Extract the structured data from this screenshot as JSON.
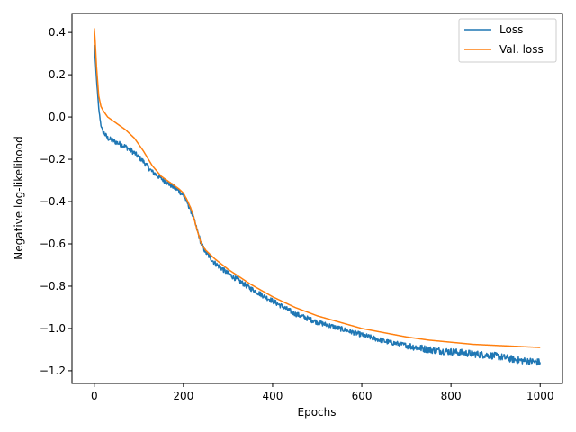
{
  "chart_data": {
    "type": "line",
    "title": "",
    "xlabel": "Epochs",
    "ylabel": "Negative log-likelihood",
    "xlim": [
      -50,
      1050
    ],
    "ylim": [
      -1.26,
      0.49
    ],
    "xticks": [
      0,
      200,
      400,
      600,
      800,
      1000
    ],
    "yticks": [
      -1.2,
      -1.0,
      -0.8,
      -0.6,
      -0.4,
      -0.2,
      0.0,
      0.2,
      0.4
    ],
    "xtick_labels": [
      "0",
      "200",
      "400",
      "600",
      "800",
      "1000"
    ],
    "ytick_labels": [
      "−1.2",
      "−1.0",
      "−0.8",
      "−0.6",
      "−0.4",
      "−0.2",
      "0.0",
      "0.2",
      "0.4"
    ],
    "grid": false,
    "legend_position": "top-right",
    "series": [
      {
        "name": "Loss",
        "color": "#1f77b4",
        "noise": 0.012,
        "x": [
          0,
          2,
          5,
          10,
          15,
          20,
          30,
          50,
          70,
          90,
          110,
          130,
          150,
          170,
          190,
          200,
          210,
          220,
          230,
          240,
          250,
          270,
          300,
          350,
          400,
          450,
          500,
          550,
          600,
          650,
          700,
          750,
          800,
          850,
          900,
          950,
          1000
        ],
        "y": [
          0.34,
          0.28,
          0.18,
          0.04,
          -0.04,
          -0.07,
          -0.1,
          -0.12,
          -0.14,
          -0.17,
          -0.21,
          -0.26,
          -0.29,
          -0.32,
          -0.35,
          -0.37,
          -0.41,
          -0.46,
          -0.53,
          -0.6,
          -0.64,
          -0.69,
          -0.74,
          -0.81,
          -0.87,
          -0.93,
          -0.97,
          -1.0,
          -1.03,
          -1.06,
          -1.08,
          -1.1,
          -1.11,
          -1.12,
          -1.13,
          -1.15,
          -1.16
        ]
      },
      {
        "name": "Val. loss",
        "color": "#ff7f0e",
        "noise": 0,
        "x": [
          0,
          2,
          5,
          10,
          15,
          20,
          30,
          50,
          70,
          90,
          110,
          130,
          150,
          170,
          190,
          200,
          210,
          220,
          230,
          240,
          250,
          270,
          300,
          350,
          400,
          450,
          500,
          550,
          600,
          650,
          700,
          750,
          800,
          850,
          900,
          950,
          1000
        ],
        "y": [
          0.42,
          0.36,
          0.24,
          0.1,
          0.05,
          0.03,
          0.0,
          -0.03,
          -0.06,
          -0.1,
          -0.16,
          -0.23,
          -0.28,
          -0.31,
          -0.34,
          -0.36,
          -0.4,
          -0.45,
          -0.53,
          -0.6,
          -0.63,
          -0.67,
          -0.72,
          -0.79,
          -0.85,
          -0.9,
          -0.94,
          -0.97,
          -1.0,
          -1.02,
          -1.04,
          -1.055,
          -1.065,
          -1.075,
          -1.08,
          -1.085,
          -1.09
        ]
      }
    ]
  }
}
